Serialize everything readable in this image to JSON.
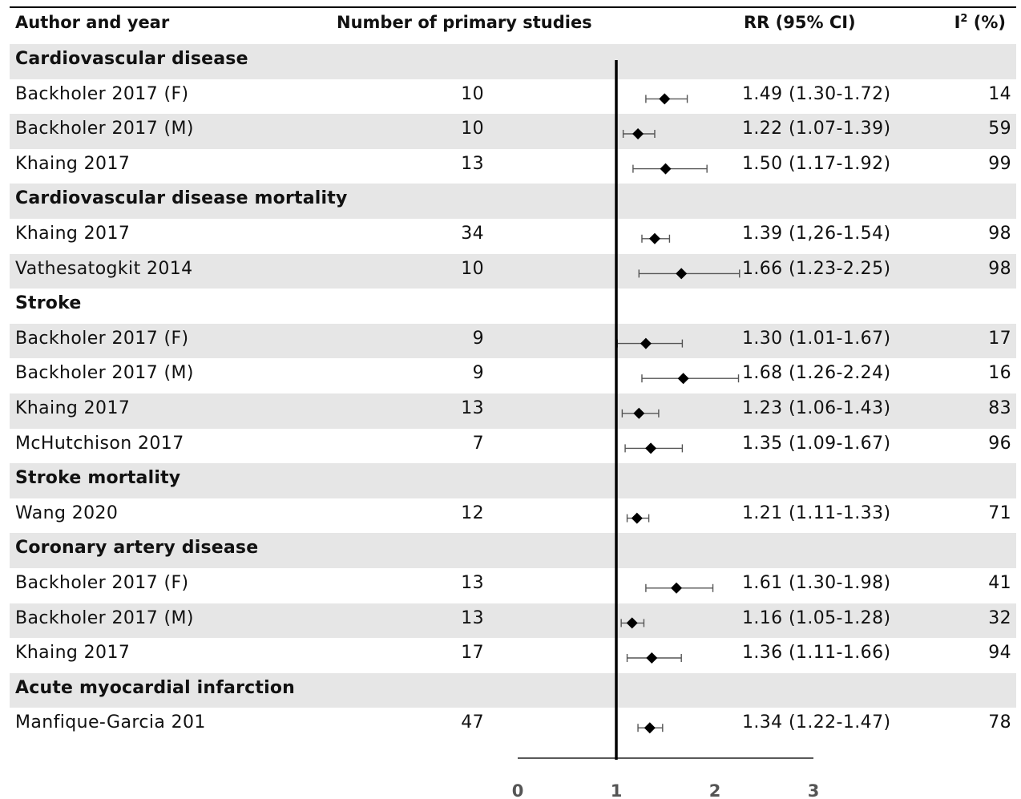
{
  "headers": {
    "author": "Author and year",
    "n": "Number of primary studies",
    "rr": "RR (95% CI)",
    "i2_main": "I",
    "i2_sup": "2",
    "i2_unit": " (%)"
  },
  "rows": [
    {
      "type": "category",
      "label": "Cardiovascular disease"
    },
    {
      "type": "study",
      "author": "Backholer 2017 (F)",
      "n": "10",
      "rr_text": "1.49 (1.30-1.72)",
      "i2": "14",
      "rr": 1.49,
      "lo": 1.3,
      "hi": 1.72
    },
    {
      "type": "study",
      "author": "Backholer 2017 (M)",
      "n": "10",
      "rr_text": "1.22 (1.07-1.39)",
      "i2": "59",
      "rr": 1.22,
      "lo": 1.07,
      "hi": 1.39
    },
    {
      "type": "study",
      "author": "Khaing 2017",
      "n": "13",
      "rr_text": "1.50 (1.17-1.92)",
      "i2": "99",
      "rr": 1.5,
      "lo": 1.17,
      "hi": 1.92
    },
    {
      "type": "category",
      "label": "Cardiovascular disease mortality"
    },
    {
      "type": "study",
      "author": "Khaing 2017",
      "n": "34",
      "rr_text": "1.39 (1,26-1.54)",
      "i2": "98",
      "rr": 1.39,
      "lo": 1.26,
      "hi": 1.54
    },
    {
      "type": "study",
      "author": "Vathesatogkit 2014",
      "n": "10",
      "rr_text": "1.66 (1.23-2.25)",
      "i2": "98",
      "rr": 1.66,
      "lo": 1.23,
      "hi": 2.25
    },
    {
      "type": "category",
      "label": "Stroke"
    },
    {
      "type": "study",
      "author": "Backholer 2017 (F)",
      "n": "9",
      "rr_text": "1.30 (1.01-1.67)",
      "i2": "17",
      "rr": 1.3,
      "lo": 1.01,
      "hi": 1.67
    },
    {
      "type": "study",
      "author": "Backholer 2017 (M)",
      "n": "9",
      "rr_text": "1.68 (1.26-2.24)",
      "i2": "16",
      "rr": 1.68,
      "lo": 1.26,
      "hi": 2.24
    },
    {
      "type": "study",
      "author": "Khaing 2017",
      "n": "13",
      "rr_text": "1.23 (1.06-1.43)",
      "i2": "83",
      "rr": 1.23,
      "lo": 1.06,
      "hi": 1.43
    },
    {
      "type": "study",
      "author": "McHutchison 2017",
      "n": "7",
      "rr_text": "1.35 (1.09-1.67)",
      "i2": "96",
      "rr": 1.35,
      "lo": 1.09,
      "hi": 1.67
    },
    {
      "type": "category",
      "label": "Stroke mortality"
    },
    {
      "type": "study",
      "author": "Wang 2020",
      "n": "12",
      "rr_text": "1.21 (1.11-1.33)",
      "i2": "71",
      "rr": 1.21,
      "lo": 1.11,
      "hi": 1.33
    },
    {
      "type": "category",
      "label": "Coronary artery disease"
    },
    {
      "type": "study",
      "author": "Backholer 2017 (F)",
      "n": "13",
      "rr_text": "1.61 (1.30-1.98)",
      "i2": "41",
      "rr": 1.61,
      "lo": 1.3,
      "hi": 1.98
    },
    {
      "type": "study",
      "author": "Backholer 2017 (M)",
      "n": "13",
      "rr_text": "1.16 (1.05-1.28)",
      "i2": "32",
      "rr": 1.16,
      "lo": 1.05,
      "hi": 1.28
    },
    {
      "type": "study",
      "author": "Khaing 2017",
      "n": "17",
      "rr_text": "1.36 (1.11-1.66)",
      "i2": "94",
      "rr": 1.36,
      "lo": 1.11,
      "hi": 1.66
    },
    {
      "type": "category",
      "label": "Acute myocardial infarction"
    },
    {
      "type": "study",
      "author": "Manfique-Garcia 201",
      "n": "47",
      "rr_text": "1.34 (1.22-1.47)",
      "i2": "78",
      "rr": 1.34,
      "lo": 1.22,
      "hi": 1.47
    }
  ],
  "chart_data": {
    "type": "forest",
    "reference_line": 1,
    "xlim": [
      0,
      3
    ],
    "xticks": [
      0,
      1,
      2,
      3
    ],
    "xtick_labels": [
      "0",
      "1",
      "2",
      "3"
    ],
    "grid": false,
    "colors": {
      "row_shade": "#e6e6e6",
      "marker": "#000000",
      "ci": "#555555"
    }
  }
}
